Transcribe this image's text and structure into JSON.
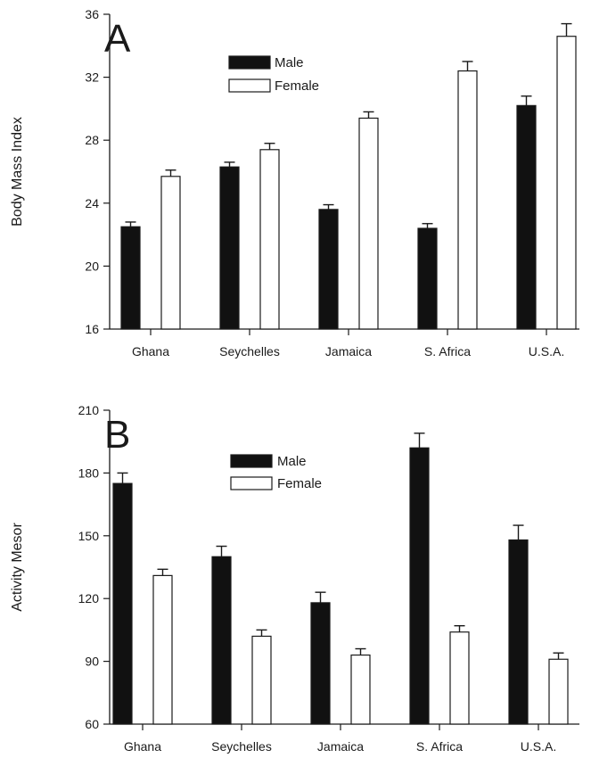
{
  "chart_data": [
    {
      "type": "bar",
      "panel_label": "A",
      "ylabel": "Body Mass Index",
      "ylim": [
        16,
        36
      ],
      "yticks": [
        "16",
        "20",
        "24",
        "28",
        "32",
        "36"
      ],
      "categories": [
        "Ghana",
        "Seychelles",
        "Jamaica",
        "S. Africa",
        "U.S.A."
      ],
      "series": [
        {
          "name": "Male",
          "color": "#111111",
          "values": [
            22.5,
            26.3,
            23.6,
            22.4,
            30.2
          ],
          "error": [
            0.3,
            0.3,
            0.3,
            0.3,
            0.6
          ]
        },
        {
          "name": "Female",
          "color": "#ffffff",
          "values": [
            25.7,
            27.4,
            29.4,
            32.4,
            34.6
          ],
          "error": [
            0.4,
            0.4,
            0.4,
            0.6,
            0.8
          ]
        }
      ],
      "legend_position": "top-center"
    },
    {
      "type": "bar",
      "panel_label": "B",
      "ylabel": "Activity Mesor",
      "ylim": [
        60,
        210
      ],
      "yticks": [
        "60",
        "90",
        "120",
        "150",
        "180",
        "210"
      ],
      "categories": [
        "Ghana",
        "Seychelles",
        "Jamaica",
        "S. Africa",
        "U.S.A."
      ],
      "series": [
        {
          "name": "Male",
          "color": "#111111",
          "values": [
            175,
            140,
            118,
            192,
            148
          ],
          "error": [
            5,
            5,
            5,
            7,
            7
          ]
        },
        {
          "name": "Female",
          "color": "#ffffff",
          "values": [
            131,
            102,
            93,
            104,
            91
          ],
          "error": [
            3,
            3,
            3,
            3,
            3
          ]
        }
      ],
      "legend_position": "top-center"
    }
  ]
}
